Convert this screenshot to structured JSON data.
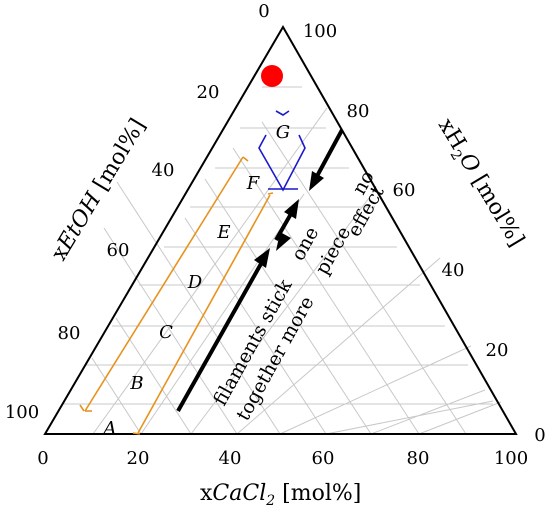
{
  "diagram": {
    "axes": {
      "bottom": {
        "prefix": "x",
        "species": "CaCl",
        "subscript": "2",
        "suffix": " [mol%]",
        "ticks": [
          "0",
          "20",
          "40",
          "60",
          "80",
          "100"
        ]
      },
      "left": {
        "prefix": "x",
        "species": "EtOH",
        "suffix": " [mol%]",
        "ticks": [
          "0",
          "20",
          "40",
          "60",
          "80",
          "100"
        ]
      },
      "right": {
        "prefix": "x",
        "species_main": "H",
        "species_sub": "2",
        "species_end": "O",
        "suffix": " [mol%]",
        "ticks": [
          "100",
          "80",
          "60",
          "40",
          "20",
          "0"
        ]
      }
    },
    "regions": [
      "A",
      "B",
      "C",
      "D",
      "E",
      "F",
      "G"
    ],
    "annotations": {
      "line1": "filaments stick",
      "line2": "together more",
      "word_one": "one",
      "word_piece": "piece",
      "word_no": "no",
      "word_effect": "effect"
    },
    "colors": {
      "grid": "#c8c8c8",
      "frame": "#000000",
      "marker": "#ff0000",
      "orange_lines": "#e8921e",
      "blue_lines": "#1a1acc",
      "arrows": "#000000"
    }
  }
}
